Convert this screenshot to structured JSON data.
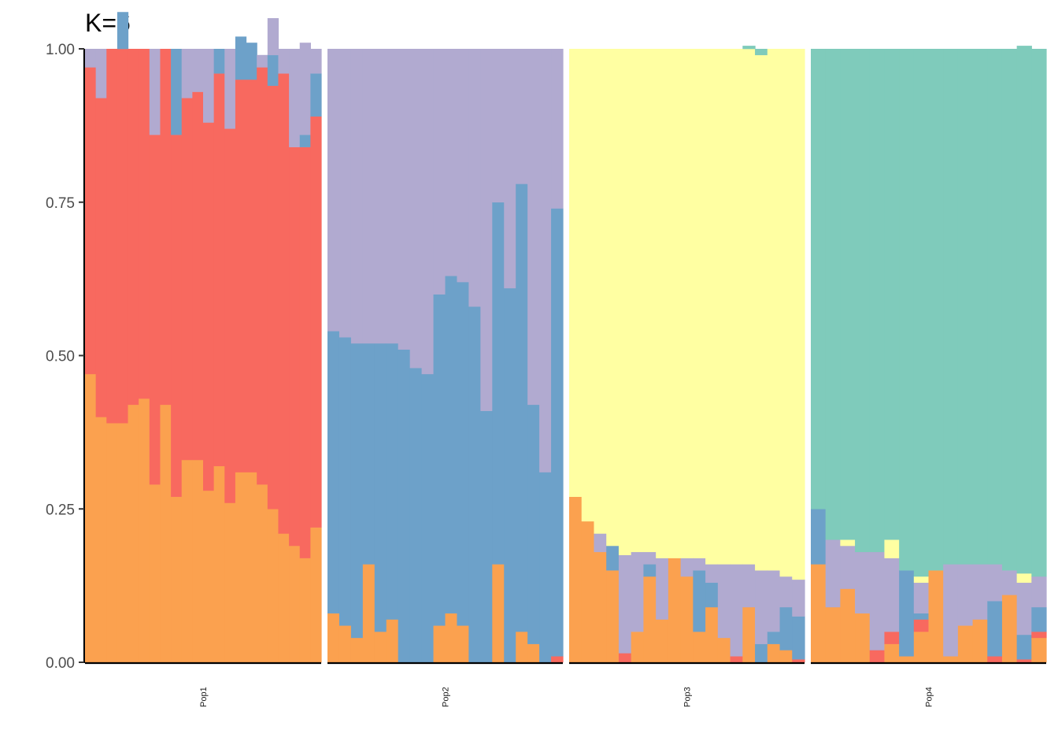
{
  "chart_data": {
    "type": "bar",
    "stacked": true,
    "title": "K=6",
    "xlabel": "",
    "ylabel": "",
    "ylim": [
      0,
      1
    ],
    "yticks": [
      "0.00",
      "0.25",
      "0.50",
      "0.75",
      "1.00"
    ],
    "grid": false,
    "legend": "none",
    "cluster_colors": [
      "#fba14f",
      "#f8695f",
      "#6da1c9",
      "#b1aad0",
      "#ffffa2",
      "#7fcbbb"
    ],
    "panels": [
      {
        "name": "Pop1",
        "individuals": [
          [
            0.47,
            0.5,
            0.0,
            0.03,
            0,
            0
          ],
          [
            0.4,
            0.52,
            0.0,
            0.08,
            0,
            0
          ],
          [
            0.39,
            0.61,
            0.0,
            0.0,
            0,
            0
          ],
          [
            0.39,
            0.61,
            0.06,
            0.0,
            0,
            0
          ],
          [
            0.42,
            0.58,
            0.0,
            0.0,
            0,
            0
          ],
          [
            0.43,
            0.57,
            0.0,
            0.0,
            0,
            0
          ],
          [
            0.29,
            0.57,
            0.0,
            0.14,
            0,
            0
          ],
          [
            0.42,
            0.58,
            0.0,
            0.0,
            0,
            0
          ],
          [
            0.27,
            0.59,
            0.14,
            0.0,
            0,
            0
          ],
          [
            0.33,
            0.59,
            0.0,
            0.08,
            0,
            0
          ],
          [
            0.33,
            0.6,
            0.0,
            0.07,
            0,
            0
          ],
          [
            0.28,
            0.6,
            0.0,
            0.12,
            0,
            0
          ],
          [
            0.32,
            0.64,
            0.04,
            0.0,
            0,
            0
          ],
          [
            0.26,
            0.61,
            0.0,
            0.13,
            0,
            0
          ],
          [
            0.31,
            0.64,
            0.07,
            0.0,
            0,
            0
          ],
          [
            0.31,
            0.64,
            0.06,
            0.0,
            0,
            0
          ],
          [
            0.29,
            0.68,
            0.0,
            0.02,
            0,
            0
          ],
          [
            0.25,
            0.69,
            0.05,
            0.06,
            0,
            0
          ],
          [
            0.21,
            0.75,
            0.0,
            0.04,
            0,
            0
          ],
          [
            0.19,
            0.65,
            0.0,
            0.16,
            0,
            0
          ],
          [
            0.17,
            0.67,
            0.02,
            0.15,
            0,
            0
          ],
          [
            0.22,
            0.67,
            0.07,
            0.04,
            0,
            0
          ]
        ]
      },
      {
        "name": "Pop2",
        "individuals": [
          [
            0.08,
            0,
            0.46,
            0.46,
            0,
            0
          ],
          [
            0.06,
            0,
            0.47,
            0.47,
            0,
            0
          ],
          [
            0.04,
            0,
            0.48,
            0.48,
            0,
            0
          ],
          [
            0.16,
            0,
            0.36,
            0.48,
            0,
            0
          ],
          [
            0.05,
            0,
            0.47,
            0.48,
            0,
            0
          ],
          [
            0.07,
            0,
            0.45,
            0.48,
            0,
            0
          ],
          [
            0.0,
            0,
            0.51,
            0.49,
            0,
            0
          ],
          [
            0.0,
            0,
            0.48,
            0.52,
            0,
            0
          ],
          [
            0.0,
            0,
            0.47,
            0.53,
            0,
            0
          ],
          [
            0.06,
            0,
            0.54,
            0.4,
            0,
            0
          ],
          [
            0.08,
            0,
            0.55,
            0.37,
            0,
            0
          ],
          [
            0.06,
            0,
            0.56,
            0.38,
            0,
            0
          ],
          [
            0.0,
            0,
            0.58,
            0.42,
            0,
            0
          ],
          [
            0.0,
            0,
            0.41,
            0.59,
            0,
            0
          ],
          [
            0.16,
            0,
            0.59,
            0.25,
            0,
            0
          ],
          [
            0.0,
            0,
            0.61,
            0.39,
            0,
            0
          ],
          [
            0.05,
            0,
            0.73,
            0.22,
            0,
            0
          ],
          [
            0.03,
            0,
            0.39,
            0.58,
            0,
            0
          ],
          [
            0.0,
            0,
            0.31,
            0.69,
            0,
            0
          ],
          [
            0.0,
            0.01,
            0.73,
            0.26,
            0,
            0
          ]
        ]
      },
      {
        "name": "Pop3",
        "individuals": [
          [
            0.27,
            0,
            0,
            0,
            0.73,
            0
          ],
          [
            0.23,
            0,
            0,
            0,
            0.77,
            0
          ],
          [
            0.18,
            0,
            0,
            0.03,
            0.79,
            0
          ],
          [
            0.15,
            0,
            0.04,
            0,
            0.81,
            0
          ],
          [
            0.0,
            0.015,
            0,
            0.16,
            0.825,
            0
          ],
          [
            0.05,
            0,
            0,
            0.13,
            0.82,
            0
          ],
          [
            0.14,
            0,
            0.02,
            0.02,
            0.82,
            0
          ],
          [
            0.07,
            0,
            0,
            0.1,
            0.83,
            0
          ],
          [
            0.17,
            0,
            0,
            0.0,
            0.83,
            0
          ],
          [
            0.14,
            0,
            0,
            0.03,
            0.83,
            0
          ],
          [
            0.05,
            0,
            0.1,
            0.02,
            0.83,
            0
          ],
          [
            0.09,
            0,
            0.04,
            0.03,
            0.84,
            0
          ],
          [
            0.04,
            0,
            0,
            0.12,
            0.84,
            0
          ],
          [
            0.0,
            0.01,
            0,
            0.15,
            0.84,
            0
          ],
          [
            0.09,
            0,
            0,
            0.07,
            0.84,
            0.005
          ],
          [
            0.0,
            0,
            0.03,
            0.12,
            0.84,
            0.01
          ],
          [
            0.03,
            0,
            0.02,
            0.1,
            0.85,
            0
          ],
          [
            0.02,
            0,
            0.07,
            0.05,
            0.86,
            0
          ],
          [
            0.0,
            0.005,
            0.07,
            0.06,
            0.865,
            0
          ]
        ]
      },
      {
        "name": "Pop4",
        "individuals": [
          [
            0.16,
            0,
            0.09,
            0,
            0,
            0.75
          ],
          [
            0.09,
            0,
            0,
            0.11,
            0,
            0.8
          ],
          [
            0.12,
            0,
            0,
            0.07,
            0.01,
            0.8
          ],
          [
            0.08,
            0,
            0,
            0.1,
            0,
            0.82
          ],
          [
            0.0,
            0.02,
            0,
            0.16,
            0,
            0.82
          ],
          [
            0.03,
            0.02,
            0,
            0.12,
            0.03,
            0.8
          ],
          [
            0.01,
            0,
            0.14,
            0,
            0,
            0.85
          ],
          [
            0.05,
            0.02,
            0.01,
            0.05,
            0.01,
            0.86
          ],
          [
            0.15,
            0,
            0,
            0,
            0,
            0.85
          ],
          [
            0.01,
            0,
            0,
            0.15,
            0,
            0.84
          ],
          [
            0.06,
            0,
            0,
            0.1,
            0,
            0.84
          ],
          [
            0.07,
            0,
            0,
            0.09,
            0,
            0.84
          ],
          [
            0.0,
            0.01,
            0.09,
            0.06,
            0,
            0.84
          ],
          [
            0.11,
            0,
            0,
            0.04,
            0,
            0.85
          ],
          [
            0.0,
            0.005,
            0.04,
            0.085,
            0.015,
            0.86
          ],
          [
            0.04,
            0.01,
            0.04,
            0.05,
            0,
            0.86
          ]
        ]
      }
    ]
  }
}
